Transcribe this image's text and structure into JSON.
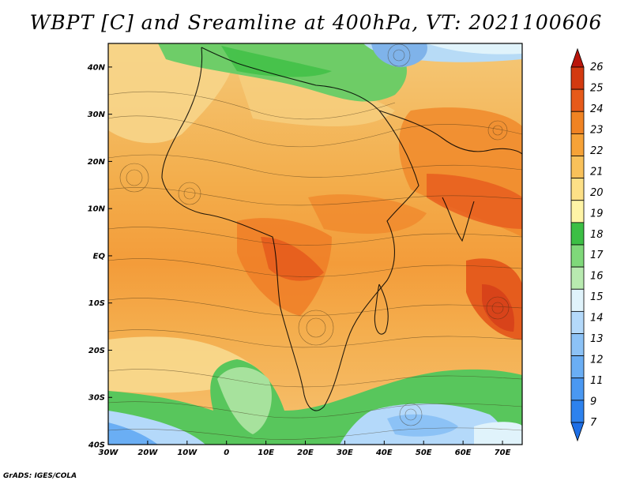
{
  "title": "WBPT [C] and Sreamline at 400hPa, VT: 2021100606",
  "credit": "GrADS: IGES/COLA",
  "map": {
    "lat_labels": [
      "40N",
      "30N",
      "20N",
      "10N",
      "EQ",
      "10S",
      "20S",
      "30S",
      "40S"
    ],
    "lon_labels": [
      "30W",
      "20W",
      "10W",
      "0",
      "10E",
      "20E",
      "30E",
      "40E",
      "50E",
      "60E",
      "70E"
    ],
    "lat_range": [
      -40,
      45
    ],
    "lon_range": [
      -30,
      75
    ]
  },
  "colorbar": {
    "levels": [
      "7",
      "9",
      "11",
      "12",
      "13",
      "14",
      "15",
      "16",
      "17",
      "18",
      "19",
      "20",
      "21",
      "22",
      "23",
      "24",
      "25",
      "26"
    ],
    "colors": [
      "#1e6fe6",
      "#2d82ee",
      "#4a98f2",
      "#6aaef4",
      "#8cc2f6",
      "#b4d9fa",
      "#e0f3fb",
      "#b8eab0",
      "#7fd87a",
      "#3cbf45",
      "#fff4a6",
      "#fde087",
      "#f9c15a",
      "#f6a237",
      "#f08323",
      "#e65a1a",
      "#d33a10",
      "#b9150b"
    ]
  }
}
